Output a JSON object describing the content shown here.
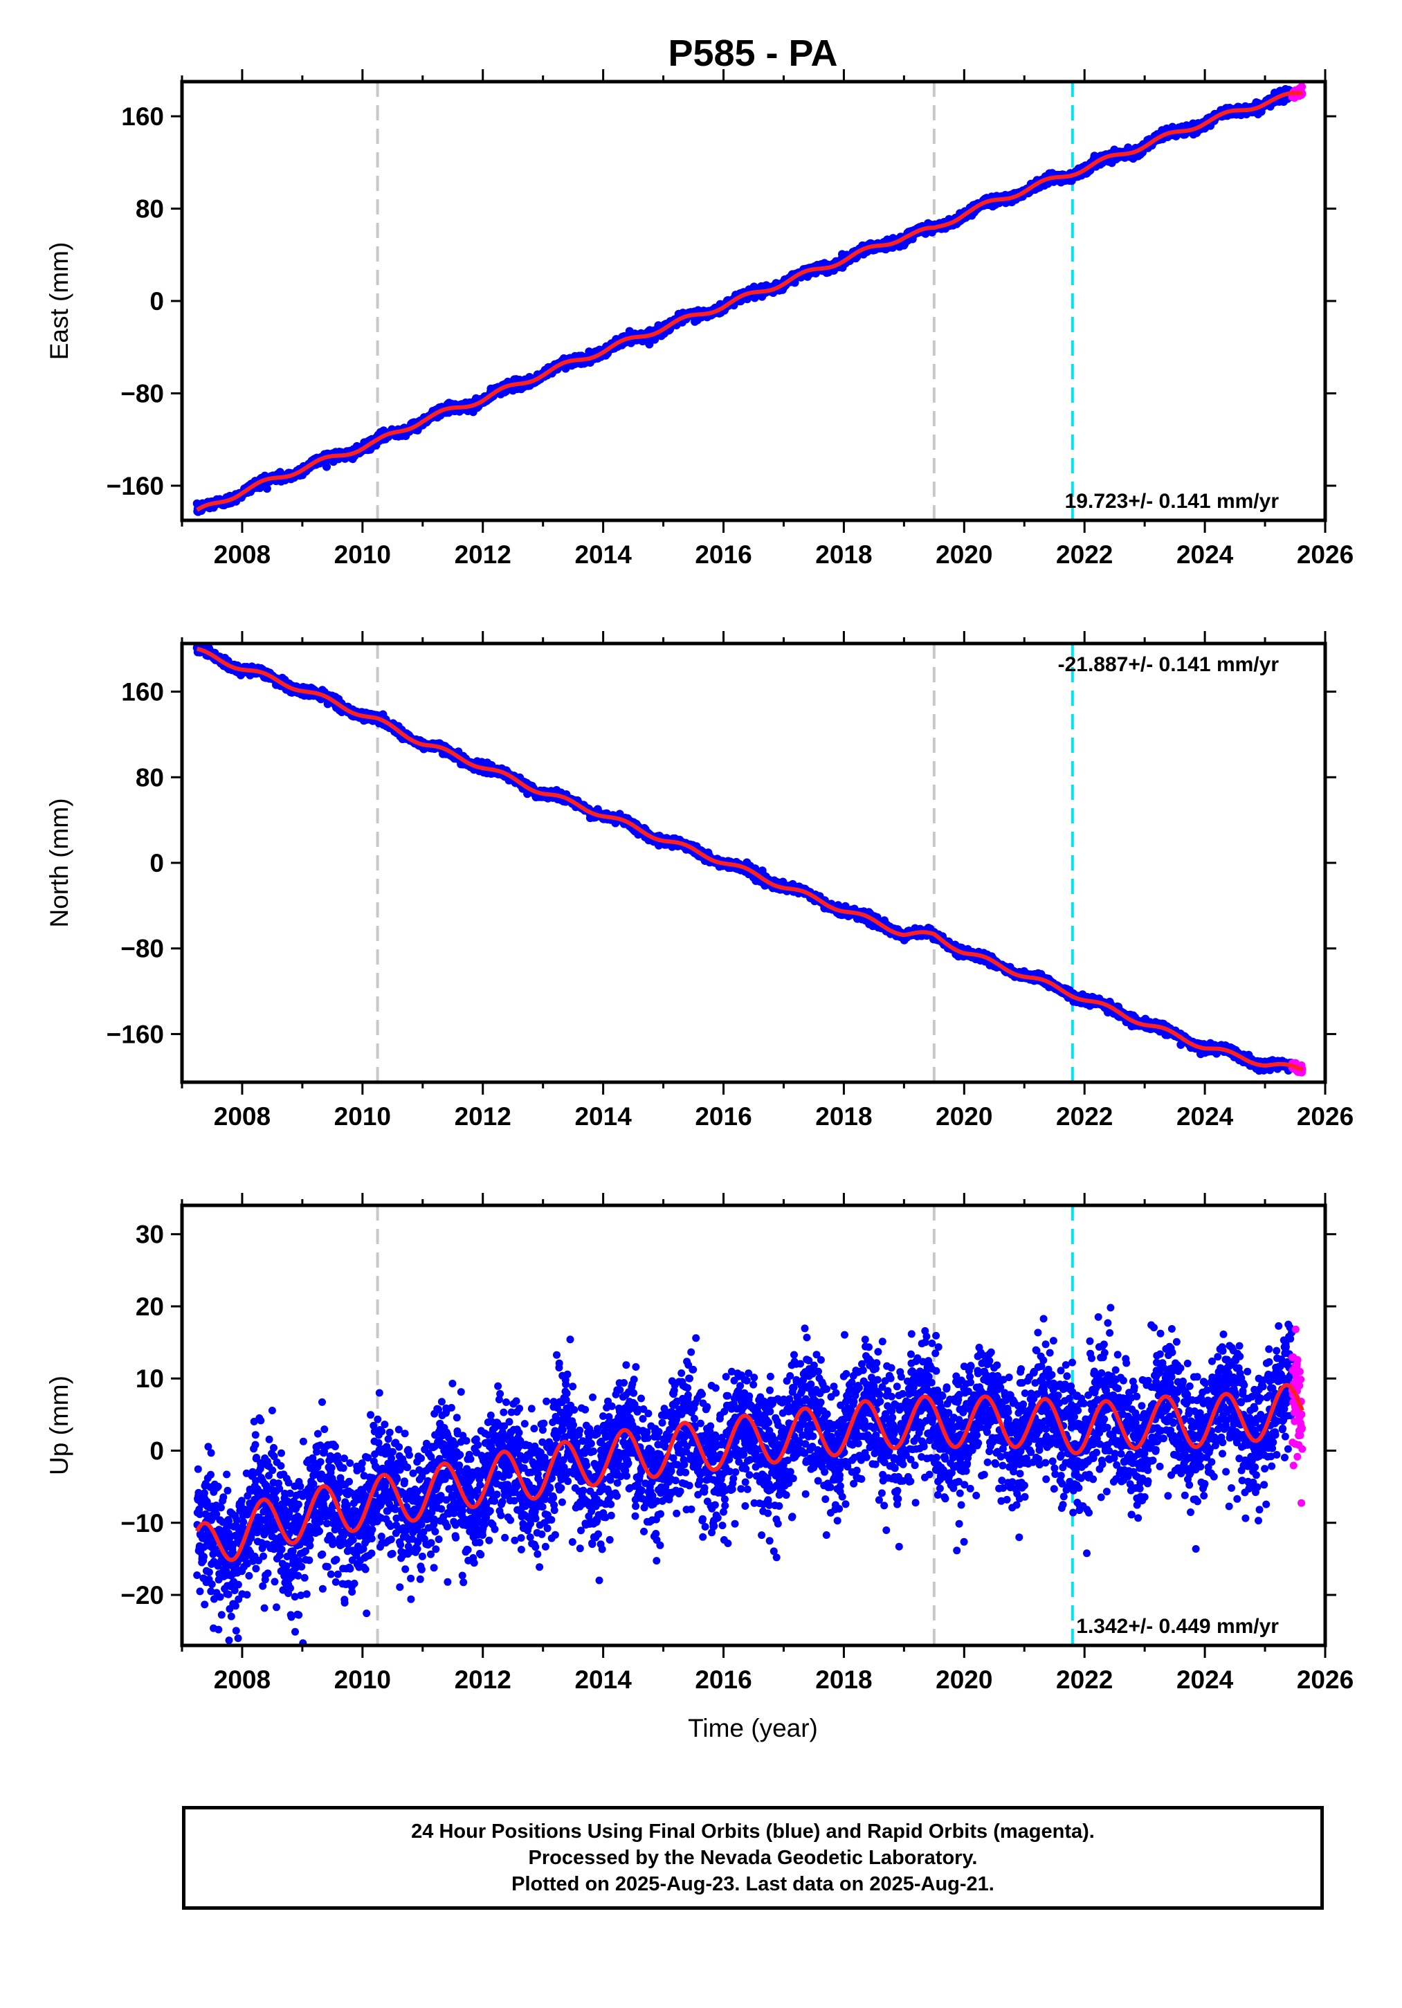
{
  "chart_data": {
    "title": "P585 - PA",
    "type": "scatter",
    "x_range": [
      2007.0,
      2026.0
    ],
    "x_ticks": [
      2008,
      2010,
      2012,
      2014,
      2016,
      2018,
      2020,
      2022,
      2024,
      2026
    ],
    "xlabel": "Time (year)",
    "vertical_lines": [
      {
        "x": 2010.25,
        "color": "#c8c8c8",
        "style": "dashed"
      },
      {
        "x": 2019.5,
        "color": "#c8c8c8",
        "style": "dashed"
      },
      {
        "x": 2021.8,
        "color": "#00e5ee",
        "style": "dashed"
      }
    ],
    "colors": {
      "final": "#0000ff",
      "rapid": "#ff00ff",
      "model": "#ff2020"
    },
    "panels": [
      {
        "id": "east",
        "ylabel": "East (mm)",
        "ylim": [
          -190,
          190
        ],
        "y_ticks": [
          -160,
          -80,
          0,
          80,
          160
        ],
        "y_tick_labels": [
          "−160",
          "−80",
          "0",
          "80",
          "160"
        ],
        "rate_label": "19.723+/- 0.141 mm/yr",
        "rate_position": "bottom-right",
        "series": [
          {
            "x": 2007.25,
            "y": -183
          },
          {
            "x": 2008.0,
            "y": -165
          },
          {
            "x": 2009.0,
            "y": -145
          },
          {
            "x": 2010.25,
            "y": -122
          },
          {
            "x": 2011.0,
            "y": -103
          },
          {
            "x": 2012.0,
            "y": -85
          },
          {
            "x": 2013.0,
            "y": -63
          },
          {
            "x": 2014.0,
            "y": -43
          },
          {
            "x": 2015.0,
            "y": -23
          },
          {
            "x": 2016.0,
            "y": -4
          },
          {
            "x": 2017.0,
            "y": 16
          },
          {
            "x": 2018.0,
            "y": 36
          },
          {
            "x": 2019.0,
            "y": 56
          },
          {
            "x": 2019.5,
            "y": 62
          },
          {
            "x": 2020.0,
            "y": 76
          },
          {
            "x": 2021.0,
            "y": 96
          },
          {
            "x": 2022.0,
            "y": 115
          },
          {
            "x": 2023.0,
            "y": 135
          },
          {
            "x": 2024.0,
            "y": 155
          },
          {
            "x": 2025.0,
            "y": 172
          },
          {
            "x": 2025.6,
            "y": 180
          }
        ]
      },
      {
        "id": "north",
        "ylabel": "North (mm)",
        "ylim": [
          -205,
          205
        ],
        "y_ticks": [
          -160,
          -80,
          0,
          80,
          160
        ],
        "y_tick_labels": [
          "−160",
          "−80",
          "0",
          "80",
          "160"
        ],
        "rate_label": "-21.887+/- 0.141 mm/yr",
        "rate_position": "top-right",
        "series": [
          {
            "x": 2007.25,
            "y": 198
          },
          {
            "x": 2008.0,
            "y": 182
          },
          {
            "x": 2009.0,
            "y": 162
          },
          {
            "x": 2010.25,
            "y": 133
          },
          {
            "x": 2011.0,
            "y": 112
          },
          {
            "x": 2012.0,
            "y": 90
          },
          {
            "x": 2013.0,
            "y": 66
          },
          {
            "x": 2014.0,
            "y": 45
          },
          {
            "x": 2015.0,
            "y": 22
          },
          {
            "x": 2016.0,
            "y": 1
          },
          {
            "x": 2017.0,
            "y": -22
          },
          {
            "x": 2018.0,
            "y": -44
          },
          {
            "x": 2019.0,
            "y": -66
          },
          {
            "x": 2019.5,
            "y": -68
          },
          {
            "x": 2020.0,
            "y": -83
          },
          {
            "x": 2021.0,
            "y": -105
          },
          {
            "x": 2022.0,
            "y": -127
          },
          {
            "x": 2023.0,
            "y": -150
          },
          {
            "x": 2024.0,
            "y": -172
          },
          {
            "x": 2025.0,
            "y": -188
          },
          {
            "x": 2025.6,
            "y": -193
          }
        ]
      },
      {
        "id": "up",
        "ylabel": "Up (mm)",
        "ylim": [
          -27,
          34
        ],
        "y_ticks": [
          -20,
          -10,
          0,
          10,
          20,
          30
        ],
        "y_tick_labels": [
          "−20",
          "−10",
          "0",
          "10",
          "20",
          "30"
        ],
        "rate_label": "1.342+/- 0.449 mm/yr",
        "rate_position": "bottom-right",
        "series": [
          {
            "x": 2007.25,
            "y": -14
          },
          {
            "x": 2008.0,
            "y": -11
          },
          {
            "x": 2009.0,
            "y": -9
          },
          {
            "x": 2010.25,
            "y": -7
          },
          {
            "x": 2011.0,
            "y": -6
          },
          {
            "x": 2012.0,
            "y": -4
          },
          {
            "x": 2013.0,
            "y": -3
          },
          {
            "x": 2014.0,
            "y": -1
          },
          {
            "x": 2015.0,
            "y": 0
          },
          {
            "x": 2016.0,
            "y": 1
          },
          {
            "x": 2017.0,
            "y": 2
          },
          {
            "x": 2018.0,
            "y": 3
          },
          {
            "x": 2019.0,
            "y": 4
          },
          {
            "x": 2019.5,
            "y": 4
          },
          {
            "x": 2020.0,
            "y": 4
          },
          {
            "x": 2021.0,
            "y": 4
          },
          {
            "x": 2022.0,
            "y": 3
          },
          {
            "x": 2023.0,
            "y": 4
          },
          {
            "x": 2024.0,
            "y": 4
          },
          {
            "x": 2025.0,
            "y": 5
          },
          {
            "x": 2025.6,
            "y": 6
          }
        ],
        "seasonal_amplitude_mm": 3.5,
        "scatter_sd_mm": 4.5
      }
    ]
  },
  "footer": {
    "line1": "24 Hour Positions Using Final Orbits (blue) and Rapid Orbits (magenta).",
    "line2": "Processed by the Nevada Geodetic Laboratory.",
    "line3": "Plotted on 2025-Aug-23. Last data on 2025-Aug-21."
  }
}
